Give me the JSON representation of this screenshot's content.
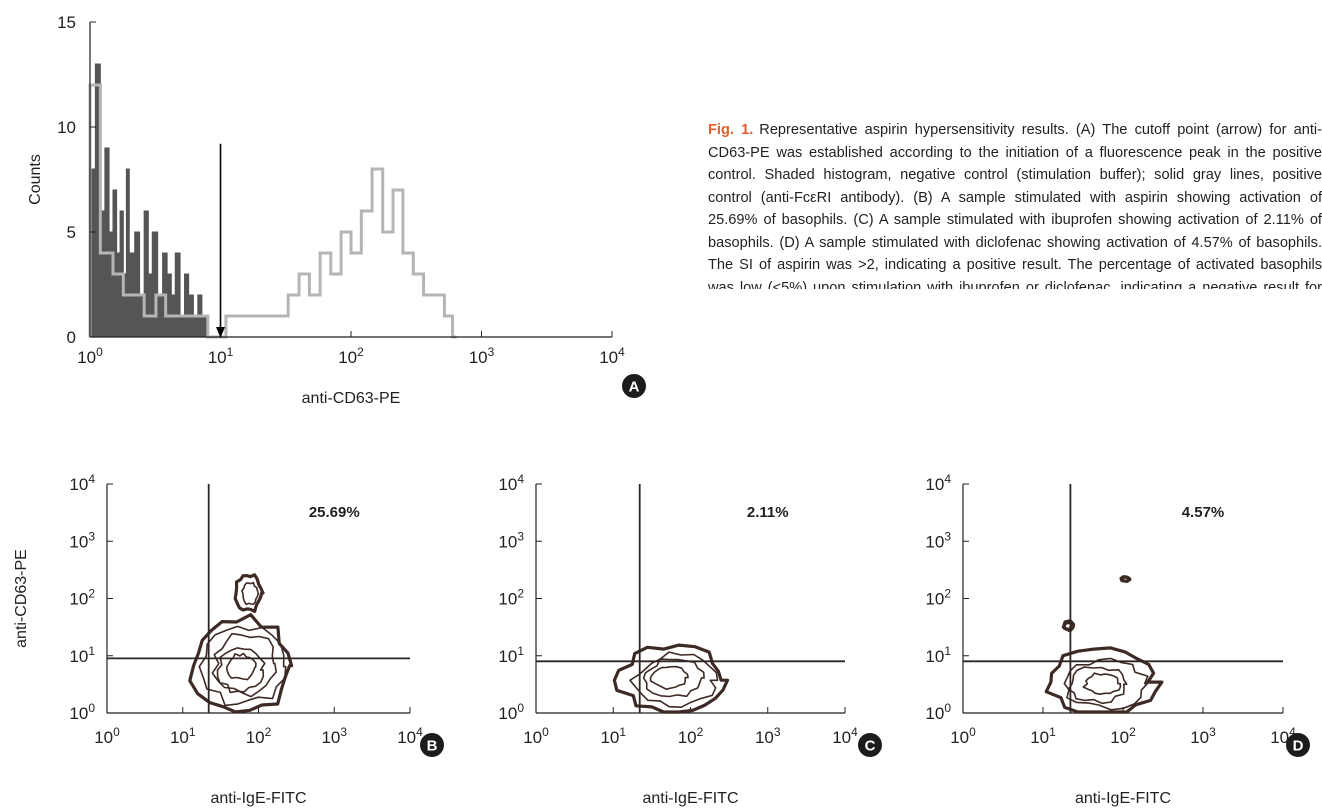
{
  "caption": {
    "figure_number": "Fig. 1.",
    "text": "Representative aspirin hypersensitivity results. (A) The cutoff point (arrow) for anti-CD63-PE was established according to the initiation of a fluorescence peak in the positive control. Shaded histogram, negative control (stimulation buffer); solid gray lines, positive control (anti-FcεRI antibody). (B) A sample stimulated with aspirin showing activation of 25.69% of basophils. (C) A sample stimulated with ibuprofen showing activation of 2.11% of basophils. (D) A sample stimulated with diclofenac showing activation of 4.57% of basophils. The SI of aspirin was >2, indicating a positive result. The percentage of activated basophils was low (<5%) upon stimulation with ibuprofen or diclofenac, indicating a negative result for each."
  },
  "colors": {
    "negative_control": "#555555",
    "positive_control": "#b5b5b5",
    "contour": "#3d2a25",
    "gate_line": "#2e2623",
    "badge": "#1c1c1c"
  },
  "chart_data": [
    {
      "id": "A",
      "type": "histogram",
      "panel_label": "A",
      "xlabel": "anti-CD63-PE",
      "ylabel": "Counts",
      "xscale": "log",
      "xlim": [
        1,
        10000
      ],
      "ylim": [
        0,
        15
      ],
      "x_ticks": [
        {
          "base": "10",
          "exp": "0"
        },
        {
          "base": "10",
          "exp": "1"
        },
        {
          "base": "10",
          "exp": "2"
        },
        {
          "base": "10",
          "exp": "3"
        },
        {
          "base": "10",
          "exp": "4"
        }
      ],
      "y_ticks": [
        "0",
        "5",
        "10",
        "15"
      ],
      "cutoff_x": 10,
      "series": [
        {
          "role": "negative_control",
          "x": [
            1.0,
            1.1,
            1.2,
            1.3,
            1.4,
            1.5,
            1.6,
            1.7,
            1.8,
            1.9,
            2.0,
            2.2,
            2.4,
            2.6,
            2.8,
            3.0,
            3.3,
            3.6,
            3.9,
            4.2,
            4.5,
            4.9,
            5.3,
            5.7,
            6.2,
            6.7,
            7.2,
            7.8
          ],
          "values": [
            8,
            13,
            6,
            9,
            5,
            7,
            4,
            6,
            3,
            8,
            4,
            5,
            2,
            6,
            3,
            5,
            2,
            4,
            3,
            2,
            4,
            1,
            3,
            2,
            1,
            2,
            1,
            0
          ]
        },
        {
          "role": "positive_control",
          "x": [
            1.0,
            1.2,
            1.5,
            1.8,
            2.2,
            2.6,
            3.2,
            3.8,
            4.6,
            5.5,
            6.6,
            8,
            11,
            14,
            18,
            22,
            27,
            33,
            40,
            48,
            58,
            70,
            84,
            100,
            120,
            145,
            175,
            210,
            250,
            300,
            360,
            430,
            520,
            600
          ],
          "values": [
            12,
            4,
            3,
            2,
            2,
            1,
            2,
            1,
            1,
            1,
            1,
            0,
            1,
            1,
            1,
            1,
            1,
            2,
            3,
            2,
            4,
            3,
            5,
            4,
            6,
            8,
            5,
            7,
            4,
            3,
            2,
            2,
            1,
            0
          ]
        }
      ]
    },
    {
      "id": "B",
      "type": "contour",
      "panel_label": "B",
      "xlabel": "anti-IgE-FITC",
      "ylabel": "anti-CD63-PE",
      "xscale": "log",
      "yscale": "log",
      "xlim": [
        1,
        10000
      ],
      "ylim": [
        1,
        10000
      ],
      "x_ticks": [
        {
          "base": "10",
          "exp": "0"
        },
        {
          "base": "10",
          "exp": "1"
        },
        {
          "base": "10",
          "exp": "2"
        },
        {
          "base": "10",
          "exp": "3"
        },
        {
          "base": "10",
          "exp": "4"
        }
      ],
      "y_ticks": [
        {
          "base": "10",
          "exp": "0"
        },
        {
          "base": "10",
          "exp": "1"
        },
        {
          "base": "10",
          "exp": "2"
        },
        {
          "base": "10",
          "exp": "3"
        },
        {
          "base": "10",
          "exp": "4"
        }
      ],
      "gate": {
        "x": 22,
        "y": 9
      },
      "percent_label": "25.69%",
      "populations": [
        {
          "x_range": [
            14,
            280
          ],
          "y_range": [
            1,
            45
          ]
        },
        {
          "x_range": [
            50,
            110
          ],
          "y_range": [
            60,
            260
          ]
        }
      ]
    },
    {
      "id": "C",
      "type": "contour",
      "panel_label": "C",
      "xlabel": "anti-IgE-FITC",
      "ylabel": "",
      "xscale": "log",
      "yscale": "log",
      "xlim": [
        1,
        10000
      ],
      "ylim": [
        1,
        10000
      ],
      "x_ticks": [
        {
          "base": "10",
          "exp": "0"
        },
        {
          "base": "10",
          "exp": "1"
        },
        {
          "base": "10",
          "exp": "2"
        },
        {
          "base": "10",
          "exp": "3"
        },
        {
          "base": "10",
          "exp": "4"
        }
      ],
      "y_ticks": [
        {
          "base": "10",
          "exp": "0"
        },
        {
          "base": "10",
          "exp": "1"
        },
        {
          "base": "10",
          "exp": "2"
        },
        {
          "base": "10",
          "exp": "3"
        },
        {
          "base": "10",
          "exp": "4"
        }
      ],
      "gate": {
        "x": 22,
        "y": 8
      },
      "percent_label": "2.11%",
      "populations": [
        {
          "x_range": [
            12,
            260
          ],
          "y_range": [
            1,
            14
          ]
        }
      ]
    },
    {
      "id": "D",
      "type": "contour",
      "panel_label": "D",
      "xlabel": "anti-IgE-FITC",
      "ylabel": "",
      "xscale": "log",
      "yscale": "log",
      "xlim": [
        1,
        10000
      ],
      "ylim": [
        1,
        10000
      ],
      "x_ticks": [
        {
          "base": "10",
          "exp": "0"
        },
        {
          "base": "10",
          "exp": "1"
        },
        {
          "base": "10",
          "exp": "2"
        },
        {
          "base": "10",
          "exp": "3"
        },
        {
          "base": "10",
          "exp": "4"
        }
      ],
      "y_ticks": [
        {
          "base": "10",
          "exp": "0"
        },
        {
          "base": "10",
          "exp": "1"
        },
        {
          "base": "10",
          "exp": "2"
        },
        {
          "base": "10",
          "exp": "3"
        },
        {
          "base": "10",
          "exp": "4"
        }
      ],
      "gate": {
        "x": 22,
        "y": 8
      },
      "percent_label": "4.57%",
      "populations": [
        {
          "x_range": [
            12,
            250
          ],
          "y_range": [
            1,
            12
          ]
        },
        {
          "x_range": [
            18,
            24
          ],
          "y_range": [
            28,
            40
          ]
        },
        {
          "x_range": [
            95,
            120
          ],
          "y_range": [
            200,
            240
          ]
        }
      ]
    }
  ]
}
